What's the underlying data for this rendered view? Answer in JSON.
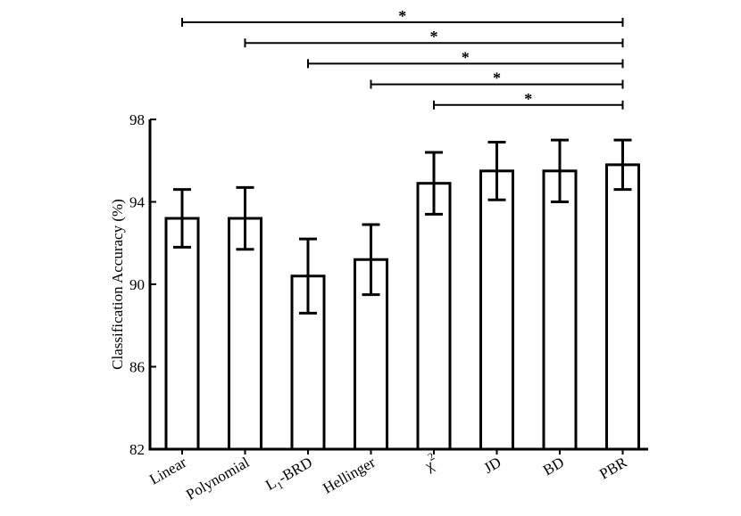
{
  "chart_data": {
    "type": "bar",
    "title": "",
    "xlabel": "",
    "ylabel": "Classification Accuracy (%)",
    "ylim": [
      82,
      98
    ],
    "yticks": [
      82,
      86,
      90,
      94,
      98
    ],
    "categories": [
      "Linear",
      "Polynomial",
      "L1-BRD",
      "Hellinger",
      "χ2",
      "JD",
      "BD",
      "PBR"
    ],
    "category_parts": [
      {
        "main": "Linear"
      },
      {
        "main": "Polynomial"
      },
      {
        "main": "L",
        "sub": "1",
        "rest": "-BRD"
      },
      {
        "main": "Hellinger"
      },
      {
        "main": "χ",
        "sup": "2"
      },
      {
        "main": "JD"
      },
      {
        "main": "BD"
      },
      {
        "main": "PBR"
      }
    ],
    "values": [
      93.2,
      93.2,
      90.4,
      91.2,
      94.9,
      95.5,
      95.5,
      95.8
    ],
    "error_lower": [
      91.8,
      91.7,
      88.6,
      89.5,
      93.4,
      94.1,
      94.0,
      94.6
    ],
    "error_upper": [
      94.6,
      94.7,
      92.2,
      92.9,
      96.4,
      96.9,
      97.0,
      97.0
    ],
    "significance": [
      {
        "from": "Linear",
        "to": "PBR",
        "label": "*"
      },
      {
        "from": "Polynomial",
        "to": "PBR",
        "label": "*"
      },
      {
        "from": "L1-BRD",
        "to": "PBR",
        "label": "*"
      },
      {
        "from": "Hellinger",
        "to": "PBR",
        "label": "*"
      },
      {
        "from": "χ2",
        "to": "PBR",
        "label": "*"
      }
    ],
    "colors": {
      "bar_fill": "#ffffff",
      "stroke": "#000000"
    }
  }
}
